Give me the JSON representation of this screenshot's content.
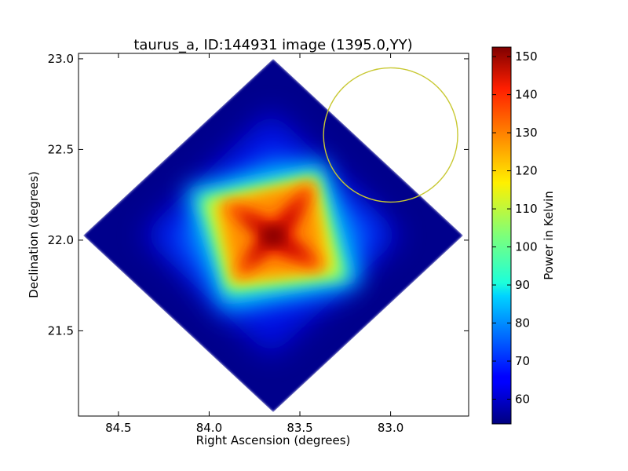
{
  "chart_data": {
    "type": "heatmap",
    "title": "taurus_a, ID:144931 image (1395.0,YY)",
    "xlabel": "Right Ascension (degrees)",
    "ylabel": "Declination (degrees)",
    "xlim": [
      84.72,
      82.57
    ],
    "ylim": [
      21.03,
      23.03
    ],
    "x_ticks": [
      "84.5",
      "84.0",
      "83.5",
      "83.0"
    ],
    "x_tick_values": [
      84.5,
      84.0,
      83.5,
      83.0
    ],
    "y_ticks": [
      "21.5",
      "22.0",
      "22.5",
      "23.0"
    ],
    "y_tick_values": [
      21.5,
      22.0,
      22.5,
      23.0
    ],
    "colormap": "jet",
    "colorbar": {
      "label": "Power in Kelvin",
      "min": 53.5,
      "max": 152.5,
      "ticks": [
        "60",
        "70",
        "80",
        "90",
        "100",
        "110",
        "120",
        "130",
        "140",
        "150"
      ],
      "tick_values": [
        60,
        70,
        80,
        90,
        100,
        110,
        120,
        130,
        140,
        150
      ]
    },
    "source_peak": {
      "ra": 83.63,
      "dec": 22.01,
      "value": 152
    },
    "coverage_center": {
      "ra": 83.63,
      "dec": 22.0
    },
    "circle_marker": {
      "ra": 83.0,
      "dec": 22.58,
      "radius_deg": 0.37,
      "color": "#c8c832"
    },
    "grid": false,
    "legend": "none"
  }
}
